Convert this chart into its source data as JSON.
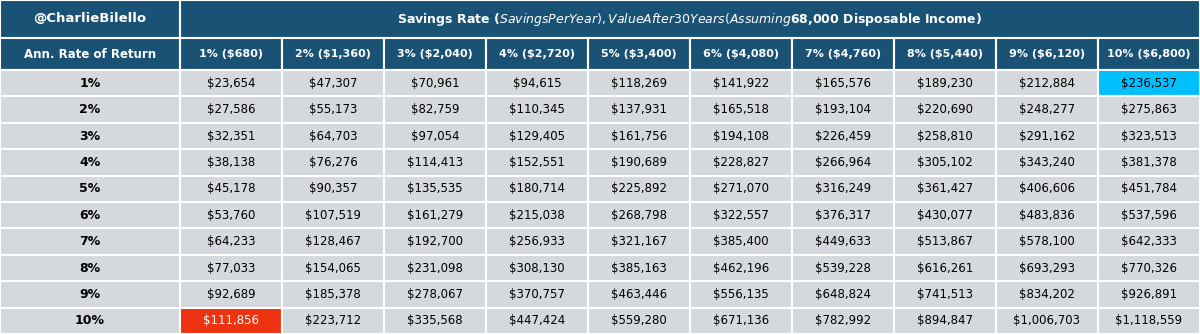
{
  "title": "Savings Rate ($ Savings Per Year), Value After 30 Years (Assuming $68,000 Disposable Income)",
  "watermark": "@CharlieBilello",
  "col_headers": [
    "1% ($680)",
    "2% ($1,360)",
    "3% ($2,040)",
    "4% ($2,720)",
    "5% ($3,400)",
    "6% ($4,080)",
    "7% ($4,760)",
    "8% ($5,440)",
    "9% ($6,120)",
    "10% ($6,800)"
  ],
  "row_headers": [
    "1%",
    "2%",
    "3%",
    "4%",
    "5%",
    "6%",
    "7%",
    "8%",
    "9%",
    "10%"
  ],
  "row_label": "Ann. Rate of Return",
  "table_data": [
    [
      "$23,654",
      "$47,307",
      "$70,961",
      "$94,615",
      "$118,269",
      "$141,922",
      "$165,576",
      "$189,230",
      "$212,884",
      "$236,537"
    ],
    [
      "$27,586",
      "$55,173",
      "$82,759",
      "$110,345",
      "$137,931",
      "$165,518",
      "$193,104",
      "$220,690",
      "$248,277",
      "$275,863"
    ],
    [
      "$32,351",
      "$64,703",
      "$97,054",
      "$129,405",
      "$161,756",
      "$194,108",
      "$226,459",
      "$258,810",
      "$291,162",
      "$323,513"
    ],
    [
      "$38,138",
      "$76,276",
      "$114,413",
      "$152,551",
      "$190,689",
      "$228,827",
      "$266,964",
      "$305,102",
      "$343,240",
      "$381,378"
    ],
    [
      "$45,178",
      "$90,357",
      "$135,535",
      "$180,714",
      "$225,892",
      "$271,070",
      "$316,249",
      "$361,427",
      "$406,606",
      "$451,784"
    ],
    [
      "$53,760",
      "$107,519",
      "$161,279",
      "$215,038",
      "$268,798",
      "$322,557",
      "$376,317",
      "$430,077",
      "$483,836",
      "$537,596"
    ],
    [
      "$64,233",
      "$128,467",
      "$192,700",
      "$256,933",
      "$321,167",
      "$385,400",
      "$449,633",
      "$513,867",
      "$578,100",
      "$642,333"
    ],
    [
      "$77,033",
      "$154,065",
      "$231,098",
      "$308,130",
      "$385,163",
      "$462,196",
      "$539,228",
      "$616,261",
      "$693,293",
      "$770,326"
    ],
    [
      "$92,689",
      "$185,378",
      "$278,067",
      "$370,757",
      "$463,446",
      "$556,135",
      "$648,824",
      "$741,513",
      "$834,202",
      "$926,891"
    ],
    [
      "$111,856",
      "$223,712",
      "$335,568",
      "$447,424",
      "$559,280",
      "$671,136",
      "$782,992",
      "$894,847",
      "$1,006,703",
      "$1,118,559"
    ]
  ],
  "highlight_cell": [
    0,
    9
  ],
  "highlight_color": "#00BFFF",
  "red_cell": [
    9,
    0
  ],
  "red_color": "#EE3311",
  "header_bg": "#1A5276",
  "header_text": "#FFFFFF",
  "subheader_bg": "#1A5276",
  "subheader_text": "#FFFFFF",
  "row_header_bg": "#D5D8DC",
  "row_header_text": "#000000",
  "data_row_bg": "#D5D8DC",
  "cell_text": "#000000",
  "border_color": "#FFFFFF",
  "watermark_bg": "#1A5276",
  "watermark_text": "#FFFFFF",
  "figwidth": 12.0,
  "figheight": 3.34,
  "dpi": 100
}
